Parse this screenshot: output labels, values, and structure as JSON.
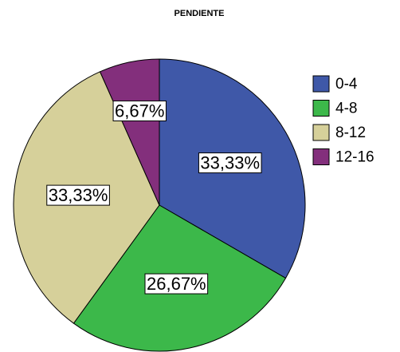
{
  "chart_data": {
    "type": "pie",
    "title": "PENDIENTE",
    "categories": [
      "0-4",
      "4-8",
      "8-12",
      "12-16"
    ],
    "values": [
      33.33,
      26.67,
      33.33,
      6.67
    ],
    "value_labels": [
      "33,33%",
      "26,67%",
      "33,33%",
      "6,67%"
    ],
    "colors": [
      "#3f58a8",
      "#3cb84a",
      "#d6d09a",
      "#832f7c"
    ],
    "legend": "right"
  }
}
